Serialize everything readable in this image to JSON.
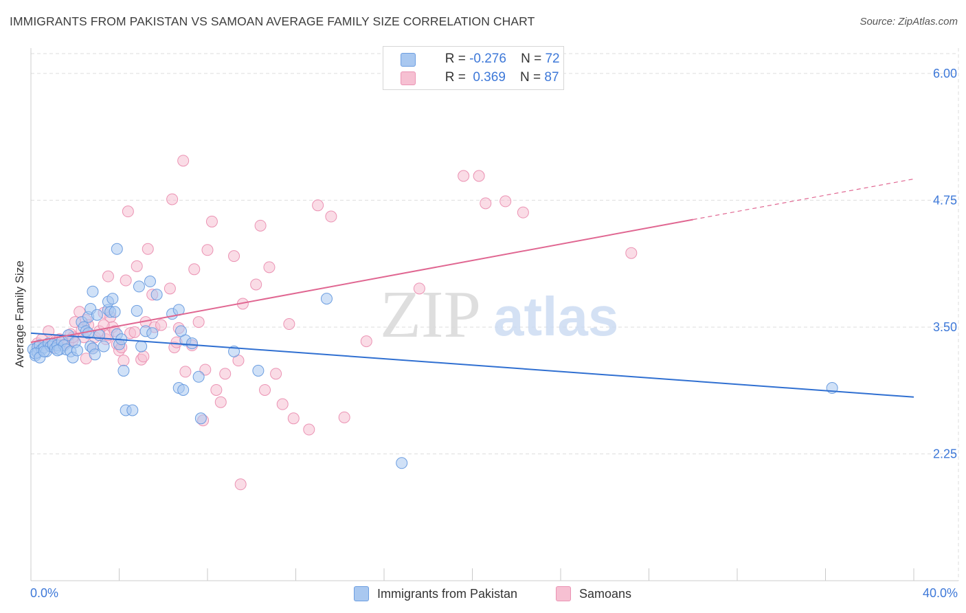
{
  "title": "IMMIGRANTS FROM PAKISTAN VS SAMOAN AVERAGE FAMILY SIZE CORRELATION CHART",
  "source": "Source: ZipAtlas.com",
  "watermark": {
    "zip": "ZIP",
    "atlas": "atlas"
  },
  "colors": {
    "blue_fill": "#a9c8f0",
    "blue_stroke": "#6b9de0",
    "blue_line": "#2f6fd1",
    "pink_fill": "#f6c0d2",
    "pink_stroke": "#eb92b3",
    "pink_line": "#e06691",
    "tick_label": "#3d78d8",
    "grid": "#dddddd"
  },
  "legend_top": {
    "rows": [
      {
        "r_label": "R = ",
        "r_value": "-0.276",
        "n_label": "N = ",
        "n_value": "72"
      },
      {
        "r_label": "R = ",
        "r_value": " 0.369",
        "n_label": "N = ",
        "n_value": "87"
      }
    ]
  },
  "chart_data": {
    "type": "scatter",
    "title": "IMMIGRANTS FROM PAKISTAN VS SAMOAN AVERAGE FAMILY SIZE CORRELATION CHART",
    "xlabel": "",
    "ylabel": "Average Family Size",
    "xlim": [
      0,
      40
    ],
    "ylim": [
      1.0,
      6.25
    ],
    "x_tick_labels": [
      "0.0%",
      "40.0%"
    ],
    "y_ticks": [
      2.25,
      3.5,
      4.75,
      6.0
    ],
    "y_tick_labels": [
      "2.25",
      "3.50",
      "4.75",
      "6.00"
    ],
    "grid": true,
    "legend": "bottom-center",
    "series": [
      {
        "name": "Immigrants from Pakistan",
        "color": "#a9c8f0",
        "trend": {
          "x": [
            0,
            40
          ],
          "y": [
            3.44,
            2.81
          ]
        },
        "points": [
          [
            0.1,
            3.28
          ],
          [
            0.2,
            3.22
          ],
          [
            0.3,
            3.3
          ],
          [
            0.3,
            3.25
          ],
          [
            0.4,
            3.32
          ],
          [
            0.5,
            3.28
          ],
          [
            0.6,
            3.3
          ],
          [
            0.7,
            3.26
          ],
          [
            0.8,
            3.34
          ],
          [
            0.9,
            3.31
          ],
          [
            1.0,
            3.33
          ],
          [
            1.1,
            3.29
          ],
          [
            1.2,
            3.32
          ],
          [
            1.3,
            3.28
          ],
          [
            1.4,
            3.36
          ],
          [
            1.5,
            3.32
          ],
          [
            1.6,
            3.28
          ],
          [
            1.7,
            3.42
          ],
          [
            1.8,
            3.26
          ],
          [
            1.9,
            3.2
          ],
          [
            2.0,
            3.35
          ],
          [
            2.1,
            3.27
          ],
          [
            2.3,
            3.55
          ],
          [
            2.4,
            3.5
          ],
          [
            2.5,
            3.46
          ],
          [
            2.6,
            3.44
          ],
          [
            2.7,
            3.31
          ],
          [
            2.8,
            3.29
          ],
          [
            2.6,
            3.6
          ],
          [
            2.7,
            3.68
          ],
          [
            2.8,
            3.85
          ],
          [
            3.0,
            3.62
          ],
          [
            3.1,
            3.42
          ],
          [
            3.3,
            3.31
          ],
          [
            3.5,
            3.67
          ],
          [
            3.5,
            3.75
          ],
          [
            3.6,
            3.65
          ],
          [
            3.7,
            3.78
          ],
          [
            3.8,
            3.65
          ],
          [
            3.9,
            3.43
          ],
          [
            4.0,
            3.33
          ],
          [
            4.1,
            3.38
          ],
          [
            3.9,
            4.27
          ],
          [
            4.2,
            3.07
          ],
          [
            4.3,
            2.68
          ],
          [
            4.6,
            2.68
          ],
          [
            4.8,
            3.66
          ],
          [
            4.9,
            3.9
          ],
          [
            5.0,
            3.31
          ],
          [
            5.2,
            3.46
          ],
          [
            5.4,
            3.95
          ],
          [
            5.5,
            3.44
          ],
          [
            5.7,
            3.82
          ],
          [
            6.4,
            3.63
          ],
          [
            6.7,
            3.67
          ],
          [
            6.8,
            3.46
          ],
          [
            7.0,
            3.37
          ],
          [
            6.7,
            2.9
          ],
          [
            6.9,
            2.88
          ],
          [
            7.3,
            3.34
          ],
          [
            7.6,
            3.01
          ],
          [
            7.7,
            2.6
          ],
          [
            9.2,
            3.26
          ],
          [
            10.3,
            3.07
          ],
          [
            13.4,
            3.78
          ],
          [
            16.8,
            2.16
          ],
          [
            36.3,
            2.9
          ],
          [
            0.2,
            3.24
          ],
          [
            0.4,
            3.2
          ],
          [
            1.2,
            3.27
          ],
          [
            2.9,
            3.23
          ],
          [
            0.6,
            3.26
          ]
        ]
      },
      {
        "name": "Samoans",
        "color": "#f6c0d2",
        "trend": {
          "x": [
            0,
            30
          ],
          "y": [
            3.35,
            4.56
          ]
        },
        "trend_dashed": {
          "x": [
            30,
            40
          ],
          "y": [
            4.56,
            4.96
          ]
        },
        "points": [
          [
            0.3,
            3.34
          ],
          [
            0.5,
            3.38
          ],
          [
            0.6,
            3.32
          ],
          [
            0.8,
            3.46
          ],
          [
            1.0,
            3.3
          ],
          [
            1.1,
            3.36
          ],
          [
            1.3,
            3.38
          ],
          [
            1.5,
            3.33
          ],
          [
            1.7,
            3.35
          ],
          [
            1.8,
            3.43
          ],
          [
            1.9,
            3.37
          ],
          [
            2.0,
            3.55
          ],
          [
            2.2,
            3.65
          ],
          [
            2.3,
            3.47
          ],
          [
            2.4,
            3.4
          ],
          [
            2.5,
            3.57
          ],
          [
            2.6,
            3.52
          ],
          [
            2.8,
            3.29
          ],
          [
            2.9,
            3.4
          ],
          [
            3.1,
            3.46
          ],
          [
            3.3,
            3.64
          ],
          [
            3.4,
            3.38
          ],
          [
            3.5,
            3.42
          ],
          [
            3.6,
            3.6
          ],
          [
            3.7,
            3.5
          ],
          [
            3.8,
            3.46
          ],
          [
            3.9,
            3.33
          ],
          [
            4.0,
            3.27
          ],
          [
            4.1,
            3.3
          ],
          [
            4.3,
            3.96
          ],
          [
            4.4,
            4.64
          ],
          [
            4.5,
            3.44
          ],
          [
            4.7,
            3.45
          ],
          [
            4.8,
            4.1
          ],
          [
            5.0,
            3.18
          ],
          [
            5.1,
            3.21
          ],
          [
            5.2,
            3.55
          ],
          [
            5.3,
            4.27
          ],
          [
            5.5,
            3.82
          ],
          [
            5.6,
            3.5
          ],
          [
            5.9,
            3.52
          ],
          [
            6.3,
            3.88
          ],
          [
            6.4,
            4.76
          ],
          [
            6.5,
            3.3
          ],
          [
            6.6,
            3.35
          ],
          [
            6.9,
            5.14
          ],
          [
            7.0,
            3.06
          ],
          [
            7.3,
            3.32
          ],
          [
            7.4,
            4.07
          ],
          [
            7.6,
            3.55
          ],
          [
            7.8,
            2.58
          ],
          [
            7.9,
            3.08
          ],
          [
            8.0,
            4.26
          ],
          [
            8.2,
            4.54
          ],
          [
            8.4,
            2.88
          ],
          [
            8.6,
            2.76
          ],
          [
            8.8,
            3.04
          ],
          [
            9.2,
            4.2
          ],
          [
            9.4,
            3.17
          ],
          [
            9.6,
            3.73
          ],
          [
            10.2,
            3.92
          ],
          [
            10.4,
            4.5
          ],
          [
            10.6,
            2.88
          ],
          [
            10.8,
            4.09
          ],
          [
            11.1,
            3.04
          ],
          [
            11.4,
            2.74
          ],
          [
            11.7,
            3.53
          ],
          [
            11.9,
            2.6
          ],
          [
            12.6,
            2.49
          ],
          [
            13.0,
            4.7
          ],
          [
            13.6,
            4.59
          ],
          [
            14.2,
            2.61
          ],
          [
            15.2,
            3.36
          ],
          [
            17.6,
            3.88
          ],
          [
            19.6,
            4.99
          ],
          [
            20.3,
            4.99
          ],
          [
            20.6,
            4.72
          ],
          [
            21.5,
            4.74
          ],
          [
            22.3,
            4.63
          ],
          [
            27.2,
            4.23
          ],
          [
            9.5,
            1.95
          ],
          [
            3.3,
            3.52
          ],
          [
            3.5,
            4.0
          ],
          [
            2.5,
            3.19
          ],
          [
            1.9,
            3.4
          ],
          [
            6.7,
            3.49
          ],
          [
            4.2,
            3.17
          ]
        ]
      }
    ]
  },
  "legend_bottom": {
    "items": [
      {
        "label": "Immigrants from Pakistan"
      },
      {
        "label": "Samoans"
      }
    ]
  }
}
